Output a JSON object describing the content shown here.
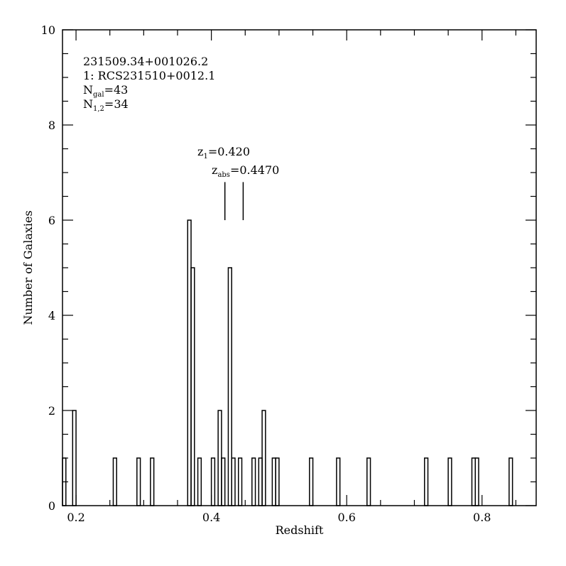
{
  "chart_data": {
    "type": "histogram",
    "xlabel": "Redshift",
    "ylabel": "Number of Galaxies",
    "xlim": [
      0.18,
      0.88
    ],
    "ylim": [
      0,
      10
    ],
    "xticks": [
      0.2,
      0.4,
      0.6,
      0.8
    ],
    "xtick_labels": [
      "0.2",
      "0.4",
      "0.6",
      "0.8"
    ],
    "yticks": [
      0,
      2,
      4,
      6,
      8,
      10
    ],
    "ytick_labels": [
      "0",
      "2",
      "4",
      "6",
      "8",
      "10"
    ],
    "bin_width": 0.005,
    "bins": [
      {
        "x0": 0.18,
        "x1": 0.185,
        "count": 1
      },
      {
        "x0": 0.195,
        "x1": 0.2,
        "count": 2
      },
      {
        "x0": 0.255,
        "x1": 0.26,
        "count": 1
      },
      {
        "x0": 0.29,
        "x1": 0.295,
        "count": 1
      },
      {
        "x0": 0.31,
        "x1": 0.315,
        "count": 1
      },
      {
        "x0": 0.365,
        "x1": 0.37,
        "count": 6
      },
      {
        "x0": 0.37,
        "x1": 0.375,
        "count": 5
      },
      {
        "x0": 0.38,
        "x1": 0.385,
        "count": 1
      },
      {
        "x0": 0.4,
        "x1": 0.405,
        "count": 1
      },
      {
        "x0": 0.41,
        "x1": 0.415,
        "count": 2
      },
      {
        "x0": 0.415,
        "x1": 0.42,
        "count": 1
      },
      {
        "x0": 0.425,
        "x1": 0.43,
        "count": 5
      },
      {
        "x0": 0.43,
        "x1": 0.435,
        "count": 1
      },
      {
        "x0": 0.44,
        "x1": 0.445,
        "count": 1
      },
      {
        "x0": 0.46,
        "x1": 0.465,
        "count": 1
      },
      {
        "x0": 0.47,
        "x1": 0.475,
        "count": 1
      },
      {
        "x0": 0.475,
        "x1": 0.48,
        "count": 2
      },
      {
        "x0": 0.49,
        "x1": 0.495,
        "count": 1
      },
      {
        "x0": 0.495,
        "x1": 0.5,
        "count": 1
      },
      {
        "x0": 0.545,
        "x1": 0.55,
        "count": 1
      },
      {
        "x0": 0.585,
        "x1": 0.59,
        "count": 1
      },
      {
        "x0": 0.63,
        "x1": 0.635,
        "count": 1
      },
      {
        "x0": 0.715,
        "x1": 0.72,
        "count": 1
      },
      {
        "x0": 0.75,
        "x1": 0.755,
        "count": 1
      },
      {
        "x0": 0.785,
        "x1": 0.79,
        "count": 1
      },
      {
        "x0": 0.79,
        "x1": 0.795,
        "count": 1
      },
      {
        "x0": 0.84,
        "x1": 0.845,
        "count": 1
      }
    ],
    "markers": [
      {
        "x": 0.42,
        "y0": 6.0,
        "y1": 6.8
      },
      {
        "x": 0.447,
        "y0": 6.0,
        "y1": 6.8
      }
    ],
    "annotations": {
      "line1": "231509.34+001026.2",
      "line2": "1: RCS231510+0012.1",
      "ngal_main": "N",
      "ngal_sub": "gal",
      "ngal_value": "=43",
      "n12_main": "N",
      "n12_sub": "1,2",
      "n12_value": "=34",
      "z1_main": "z",
      "z1_sub": "1",
      "z1_value": "=0.420",
      "zabs_main": "z",
      "zabs_sub": "abs",
      "zabs_value": "=0.4470"
    }
  }
}
